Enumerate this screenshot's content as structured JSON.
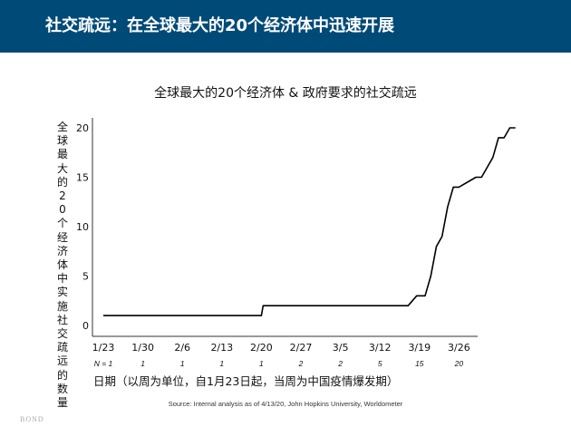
{
  "header": {
    "title": "社交疏远：在全球最大的20个经济体中迅速开展"
  },
  "logo": "BOND",
  "source": "Source: Internal analysis as of 4/13/20, John Hopkins University, Worldometer",
  "colors": {
    "header_bg": "#004a78",
    "line": "#000000"
  },
  "chart_data": {
    "type": "line",
    "title": "全球最大的20个经济体 & 政府要求的社交疏远",
    "xlabel": "日期（以周为单位，自1月23日起，当周为中国疫情爆发期）",
    "ylabel": "全球最大的20个经济体中实施社交疏远的数量",
    "ylim": [
      0,
      20
    ],
    "yticks": [
      "0",
      "5",
      "10",
      "15",
      "20"
    ],
    "xticks": [
      "1/23",
      "1/30",
      "2/6",
      "2/13",
      "2/20",
      "2/27",
      "3/5",
      "3/12",
      "3/19",
      "3/26"
    ],
    "n_row": [
      "N = 1",
      "1",
      "1",
      "1",
      "1",
      "2",
      "2",
      "5",
      "15",
      "20"
    ],
    "x_days": [
      0,
      28,
      28.3,
      54,
      55.5,
      57,
      58,
      59,
      60,
      61,
      62,
      63,
      66,
      67,
      68,
      69,
      70,
      71,
      72,
      73
    ],
    "y_values": [
      1,
      1,
      2,
      2,
      3,
      3,
      5,
      8,
      9,
      12,
      14,
      14,
      15,
      15,
      16,
      17,
      19,
      19,
      20,
      20
    ],
    "grid": false
  }
}
